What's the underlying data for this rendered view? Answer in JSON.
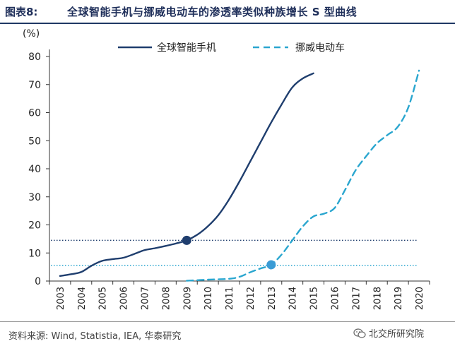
{
  "header": {
    "figure_label": "图表8:",
    "title": "全球智能手机与挪威电动车的渗透率类似种族增长 S 型曲线"
  },
  "footer": {
    "source": "资料来源:  Wind, Statistia, IEA, 华泰研究",
    "watermark": "北交所研究院"
  },
  "chart_data": {
    "type": "line",
    "unit_label": "(%)",
    "ylim": [
      0,
      80
    ],
    "yticks": [
      0,
      10,
      20,
      30,
      40,
      50,
      60,
      70,
      80
    ],
    "categories": [
      "2003",
      "2004",
      "2005",
      "2006",
      "2007",
      "2008",
      "2009",
      "2010",
      "2011",
      "2012",
      "2013",
      "2014",
      "2015",
      "2016",
      "2017",
      "2018",
      "2019",
      "2020"
    ],
    "legend_position": "top",
    "grid": false,
    "series": [
      {
        "name": "全球智能手机",
        "style": "solid",
        "color": "#1f3e6e",
        "x": [
          2003,
          2003.5,
          2004,
          2004.5,
          2005,
          2005.5,
          2006,
          2006.5,
          2007,
          2007.5,
          2008,
          2008.5,
          2009,
          2009.5,
          2010,
          2010.5,
          2011,
          2011.5,
          2012,
          2012.5,
          2013,
          2013.5,
          2014,
          2014.5,
          2015
        ],
        "values": [
          1.8,
          2.4,
          3.2,
          5.5,
          7.2,
          7.8,
          8.3,
          9.6,
          11,
          11.7,
          12.5,
          13.4,
          14.5,
          16.5,
          19.5,
          23.5,
          29,
          35.5,
          42.5,
          49.5,
          56.5,
          63,
          69,
          72.2,
          74
        ]
      },
      {
        "name": "挪威电动车",
        "style": "dashed",
        "color": "#2aa6cf",
        "x": [
          2009,
          2010,
          2011,
          2011.5,
          2012,
          2012.5,
          2013,
          2013.5,
          2014,
          2014.5,
          2015,
          2015.5,
          2016,
          2016.5,
          2017,
          2017.5,
          2018,
          2018.5,
          2019,
          2019.5,
          2020
        ],
        "values": [
          0.1,
          0.5,
          0.8,
          1.5,
          3.1,
          4.5,
          5.8,
          9.5,
          14.5,
          19.5,
          23,
          24,
          26,
          32.5,
          39.5,
          44.5,
          49,
          52,
          55,
          62,
          75
        ]
      }
    ],
    "reference_lines": [
      {
        "value": 14.5,
        "color": "#1f3e6e",
        "style": "dotted"
      },
      {
        "value": 5.6,
        "color": "#2aa6cf",
        "style": "dotted"
      }
    ],
    "markers": [
      {
        "x": 2009,
        "y": 14.5,
        "color": "#1f3e6e"
      },
      {
        "x": 2013,
        "y": 5.8,
        "color": "#3a9bd5"
      }
    ]
  }
}
